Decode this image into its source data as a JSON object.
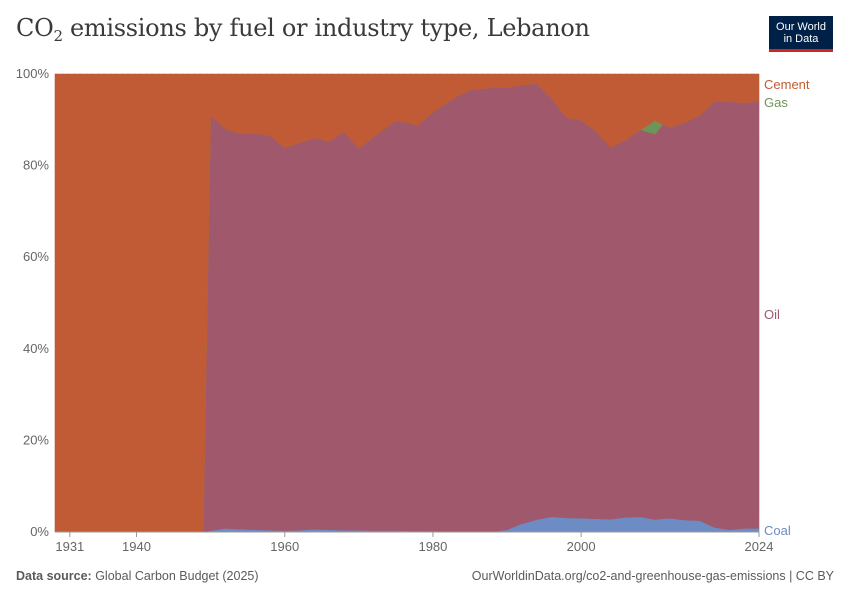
{
  "header": {
    "title_main": "CO",
    "title_sub": "2",
    "title_rest": " emissions by fuel or industry type, Lebanon",
    "logo_line1": "Our World",
    "logo_line2": "in Data",
    "logo_bg_color": "#002147",
    "logo_accent_color": "#ce261e"
  },
  "footer": {
    "source_label": "Data source:",
    "source_value": " Global Carbon Budget (2025)",
    "credit": "OurWorldinData.org/co2-and-greenhouse-gas-emissions | CC BY"
  },
  "chart_data": {
    "type": "area",
    "stacked": true,
    "normalized_percent": true,
    "x_tick_labels": [
      "1931",
      "1940",
      "1960",
      "1980",
      "2000",
      "2024"
    ],
    "x_tick_values": [
      1931,
      1940,
      1960,
      1980,
      2000,
      2024
    ],
    "y_tick_labels": [
      "0%",
      "20%",
      "40%",
      "60%",
      "80%",
      "100%"
    ],
    "y_tick_values": [
      0,
      20,
      40,
      60,
      80,
      100
    ],
    "xlim": [
      1929,
      2024
    ],
    "ylim": [
      0,
      100
    ],
    "grid": "horizontal-dashed",
    "legend_placement": "right",
    "series": [
      {
        "name": "Coal",
        "color": "#6d8cc3",
        "x": [
          1929,
          1949,
          1950,
          1952,
          1954,
          1956,
          1958,
          1960,
          1962,
          1964,
          1966,
          1968,
          1970,
          1972,
          1975,
          1980,
          1983,
          1985,
          1988,
          1990,
          1992,
          1994,
          1996,
          1998,
          2000,
          2002,
          2004,
          2006,
          2008,
          2010,
          2012,
          2014,
          2016,
          2018,
          2020,
          2022,
          2024
        ],
        "values": [
          0,
          0,
          0.3,
          0.8,
          0.6,
          0.5,
          0.4,
          0.3,
          0.4,
          0.6,
          0.5,
          0.4,
          0.4,
          0.3,
          0.3,
          0.2,
          0.1,
          0,
          0,
          0.5,
          1.8,
          2.6,
          3.3,
          3.1,
          3.0,
          2.9,
          2.8,
          3.2,
          3.3,
          2.7,
          3.0,
          2.6,
          2.5,
          1.0,
          0.5,
          0.8,
          0.8
        ]
      },
      {
        "name": "Oil",
        "color": "#a0586c",
        "x": [
          1929,
          1949,
          1950,
          1952,
          1954,
          1956,
          1958,
          1960,
          1962,
          1964,
          1966,
          1968,
          1970,
          1972,
          1975,
          1978,
          1980,
          1983,
          1985,
          1988,
          1990,
          1992,
          1994,
          1996,
          1998,
          2000,
          2002,
          2004,
          2006,
          2008,
          2010,
          2012,
          2014,
          2016,
          2018,
          2020,
          2022,
          2024
        ],
        "values": [
          0,
          0,
          90.8,
          87.2,
          86.4,
          86.5,
          86.2,
          83.6,
          84.6,
          85.4,
          84.8,
          87.0,
          83.4,
          86.0,
          89.6,
          88.6,
          91.5,
          94.8,
          96.5,
          97.0,
          96.5,
          95.8,
          91.4,
          90.9,
          87.4,
          86.9,
          84.6,
          81.2,
          82.4,
          84.5,
          84.2,
          85.4,
          86.8,
          88.5,
          93.0,
          93.5,
          92.9,
          93.2
        ]
      },
      {
        "name": "Gas",
        "color": "#6d9559",
        "x": [
          1929,
          2007,
          2008,
          2009,
          2010,
          2011,
          2024
        ],
        "values": [
          0,
          0,
          0,
          1.5,
          3.0,
          0,
          0
        ]
      },
      {
        "name": "Cement",
        "color": "#c15b35",
        "x": [
          1929,
          1949,
          1950,
          1952,
          1954,
          1956,
          1958,
          1960,
          1962,
          1964,
          1966,
          1968,
          1970,
          1972,
          1975,
          1978,
          1980,
          1983,
          1985,
          1988,
          1990,
          1992,
          1994,
          1996,
          1998,
          2000,
          2002,
          2004,
          2006,
          2008,
          2010,
          2012,
          2014,
          2016,
          2018,
          2020,
          2022,
          2024
        ],
        "values": [
          100,
          100,
          8.9,
          12.0,
          13.0,
          13.0,
          13.4,
          16.1,
          15.0,
          14.0,
          14.7,
          12.6,
          16.2,
          13.7,
          10.1,
          11.2,
          8.3,
          5.1,
          3.5,
          3.0,
          3.0,
          2.4,
          2.0,
          5.3,
          9.5,
          10.1,
          12.5,
          16.0,
          14.4,
          12.2,
          10.1,
          11.6,
          10.6,
          9.0,
          6.0,
          6.0,
          6.3,
          6.0
        ]
      }
    ]
  }
}
